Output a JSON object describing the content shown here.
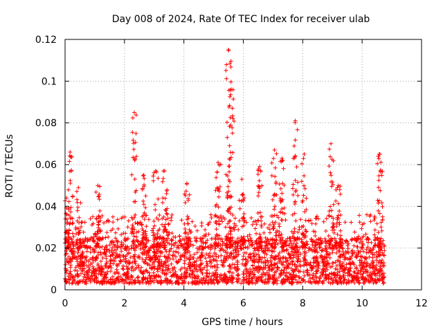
{
  "chart_data": {
    "type": "scatter",
    "title": "Day 008 of 2024, Rate Of TEC Index for receiver ulab",
    "xlabel": "GPS time / hours",
    "ylabel": "ROTI / TECUs",
    "xlim": [
      0,
      12
    ],
    "ylim": [
      0,
      0.12
    ],
    "xticks": [
      0,
      2,
      4,
      6,
      8,
      10,
      12
    ],
    "yticks": [
      0,
      0.02,
      0.04,
      0.06,
      0.08,
      0.1,
      0.12
    ],
    "xtick_labels": [
      "0",
      "2",
      "4",
      "6",
      "8",
      "10",
      "12"
    ],
    "ytick_labels": [
      "0",
      "0.02",
      "0.04",
      "0.06",
      "0.08",
      "0.1",
      "0.12"
    ],
    "grid": true,
    "marker": "+",
    "color": "#ff0000",
    "x_data_range": [
      0,
      10.75
    ],
    "baseline_range": [
      0.003,
      0.025
    ],
    "bursts": [
      {
        "x": 0.05,
        "max": 0.044
      },
      {
        "x": 0.17,
        "max": 0.066
      },
      {
        "x": 0.45,
        "max": 0.049
      },
      {
        "x": 1.1,
        "max": 0.05
      },
      {
        "x": 2.33,
        "max": 0.085
      },
      {
        "x": 2.65,
        "max": 0.055
      },
      {
        "x": 3.05,
        "max": 0.057
      },
      {
        "x": 3.35,
        "max": 0.057
      },
      {
        "x": 4.1,
        "max": 0.051
      },
      {
        "x": 5.15,
        "max": 0.061
      },
      {
        "x": 5.5,
        "max": 0.115
      },
      {
        "x": 5.6,
        "max": 0.096
      },
      {
        "x": 5.95,
        "max": 0.053
      },
      {
        "x": 6.55,
        "max": 0.059
      },
      {
        "x": 7.05,
        "max": 0.067
      },
      {
        "x": 7.3,
        "max": 0.063
      },
      {
        "x": 7.75,
        "max": 0.081
      },
      {
        "x": 8.05,
        "max": 0.065
      },
      {
        "x": 8.95,
        "max": 0.07
      },
      {
        "x": 9.2,
        "max": 0.05
      },
      {
        "x": 10.6,
        "max": 0.065
      }
    ]
  }
}
